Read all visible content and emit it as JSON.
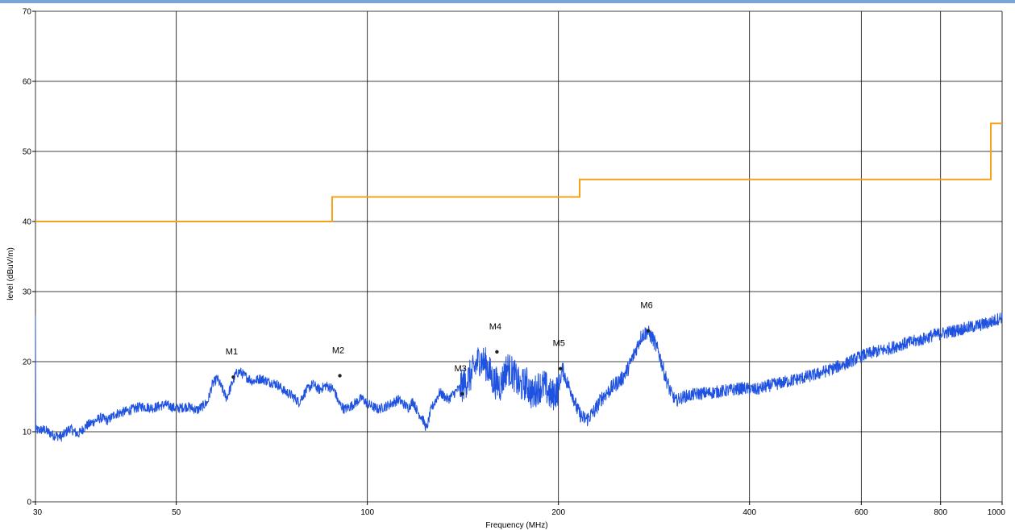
{
  "colors": {
    "top_bar": "#7aa3d8",
    "grid": "#000000",
    "trace": "#1f52e0",
    "limit": "#f5a21b",
    "marker": "#222222"
  },
  "chart_data": {
    "type": "line",
    "xlabel": "Frequency (MHz)",
    "ylabel": "level (dBuV/m)",
    "x_scale": "log",
    "xlim": [
      30,
      1000
    ],
    "ylim": [
      0,
      70
    ],
    "grid": true,
    "x_ticks": [
      30,
      50,
      100,
      200,
      400,
      600,
      800,
      1000
    ],
    "y_ticks": [
      0,
      10,
      20,
      30,
      40,
      50,
      60,
      70
    ],
    "series": [
      {
        "role": "limit",
        "points": [
          [
            30,
            40
          ],
          [
            88,
            40
          ],
          [
            88,
            43.5
          ],
          [
            216,
            43.5
          ],
          [
            216,
            46
          ],
          [
            960,
            46
          ],
          [
            960,
            54
          ],
          [
            1000,
            54
          ]
        ]
      },
      {
        "role": "measurement",
        "points": [
          [
            30,
            10.2
          ],
          [
            31,
            10.3
          ],
          [
            32,
            9.5
          ],
          [
            33,
            9.3
          ],
          [
            34,
            10.5
          ],
          [
            35,
            9.6
          ],
          [
            36,
            10.8
          ],
          [
            37,
            11.4
          ],
          [
            38,
            12.0
          ],
          [
            39,
            11.6
          ],
          [
            40,
            12.5
          ],
          [
            42,
            13.0
          ],
          [
            44,
            13.6
          ],
          [
            46,
            13.4
          ],
          [
            48,
            13.9
          ],
          [
            50,
            13.3
          ],
          [
            52,
            13.6
          ],
          [
            54,
            13.1
          ],
          [
            56,
            14.2
          ],
          [
            57,
            16.8
          ],
          [
            58,
            17.6
          ],
          [
            59,
            16.2
          ],
          [
            60,
            14.8
          ],
          [
            61,
            16.5
          ],
          [
            62,
            18.2
          ],
          [
            63,
            18.6
          ],
          [
            64,
            18.0
          ],
          [
            66,
            17.2
          ],
          [
            68,
            17.6
          ],
          [
            70,
            17.1
          ],
          [
            72,
            16.8
          ],
          [
            74,
            15.8
          ],
          [
            76,
            15.2
          ],
          [
            78,
            14.2
          ],
          [
            80,
            15.8
          ],
          [
            82,
            16.8
          ],
          [
            84,
            16.0
          ],
          [
            86,
            16.6
          ],
          [
            88,
            16.2
          ],
          [
            89,
            15.6
          ],
          [
            90,
            14.2
          ],
          [
            92,
            13.2
          ],
          [
            94,
            13.6
          ],
          [
            96,
            14.2
          ],
          [
            98,
            14.8
          ],
          [
            100,
            14.0
          ],
          [
            104,
            13.2
          ],
          [
            108,
            13.8
          ],
          [
            112,
            14.6
          ],
          [
            116,
            13.4
          ],
          [
            118,
            14.4
          ],
          [
            120,
            12.8
          ],
          [
            122,
            12.0
          ],
          [
            124,
            10.4
          ],
          [
            126,
            13.2
          ],
          [
            128,
            14.4
          ],
          [
            130,
            15.6
          ],
          [
            134,
            14.6
          ],
          [
            138,
            15.8
          ],
          [
            142,
            16.8
          ],
          [
            146,
            18.2
          ],
          [
            150,
            20.4
          ],
          [
            154,
            19.6
          ],
          [
            158,
            17.2
          ],
          [
            162,
            16.6
          ],
          [
            166,
            19.2
          ],
          [
            170,
            18.2
          ],
          [
            174,
            16.4
          ],
          [
            178,
            17.0
          ],
          [
            182,
            15.2
          ],
          [
            186,
            16.4
          ],
          [
            190,
            16.6
          ],
          [
            195,
            15.0
          ],
          [
            200,
            16.2
          ],
          [
            203,
            19.0
          ],
          [
            206,
            17.2
          ],
          [
            210,
            15.6
          ],
          [
            214,
            13.2
          ],
          [
            218,
            12.0
          ],
          [
            222,
            11.8
          ],
          [
            228,
            13.0
          ],
          [
            234,
            14.8
          ],
          [
            240,
            15.8
          ],
          [
            246,
            16.8
          ],
          [
            252,
            17.6
          ],
          [
            258,
            19.2
          ],
          [
            264,
            21.4
          ],
          [
            270,
            23.6
          ],
          [
            276,
            24.3
          ],
          [
            282,
            23.2
          ],
          [
            288,
            21.2
          ],
          [
            294,
            18.2
          ],
          [
            300,
            15.8
          ],
          [
            306,
            14.4
          ],
          [
            315,
            15.0
          ],
          [
            330,
            15.4
          ],
          [
            350,
            15.6
          ],
          [
            370,
            15.9
          ],
          [
            390,
            16.2
          ],
          [
            410,
            16.0
          ],
          [
            430,
            16.6
          ],
          [
            450,
            17.0
          ],
          [
            480,
            17.6
          ],
          [
            510,
            18.2
          ],
          [
            540,
            19.0
          ],
          [
            570,
            19.8
          ],
          [
            600,
            20.8
          ],
          [
            630,
            21.4
          ],
          [
            660,
            21.8
          ],
          [
            690,
            22.4
          ],
          [
            720,
            22.8
          ],
          [
            750,
            23.2
          ],
          [
            780,
            23.8
          ],
          [
            820,
            24.2
          ],
          [
            860,
            24.6
          ],
          [
            900,
            25.0
          ],
          [
            940,
            25.4
          ],
          [
            970,
            25.8
          ],
          [
            1000,
            26.4
          ]
        ]
      }
    ],
    "markers": [
      {
        "label": "M1",
        "x": 61.5,
        "y": 17.8
      },
      {
        "label": "M2",
        "x": 90.5,
        "y": 18.0
      },
      {
        "label": "M3",
        "x": 141.0,
        "y": 15.4
      },
      {
        "label": "M4",
        "x": 160.0,
        "y": 21.4
      },
      {
        "label": "M5",
        "x": 201.5,
        "y": 19.0
      },
      {
        "label": "M6",
        "x": 277.0,
        "y": 24.4
      }
    ]
  }
}
